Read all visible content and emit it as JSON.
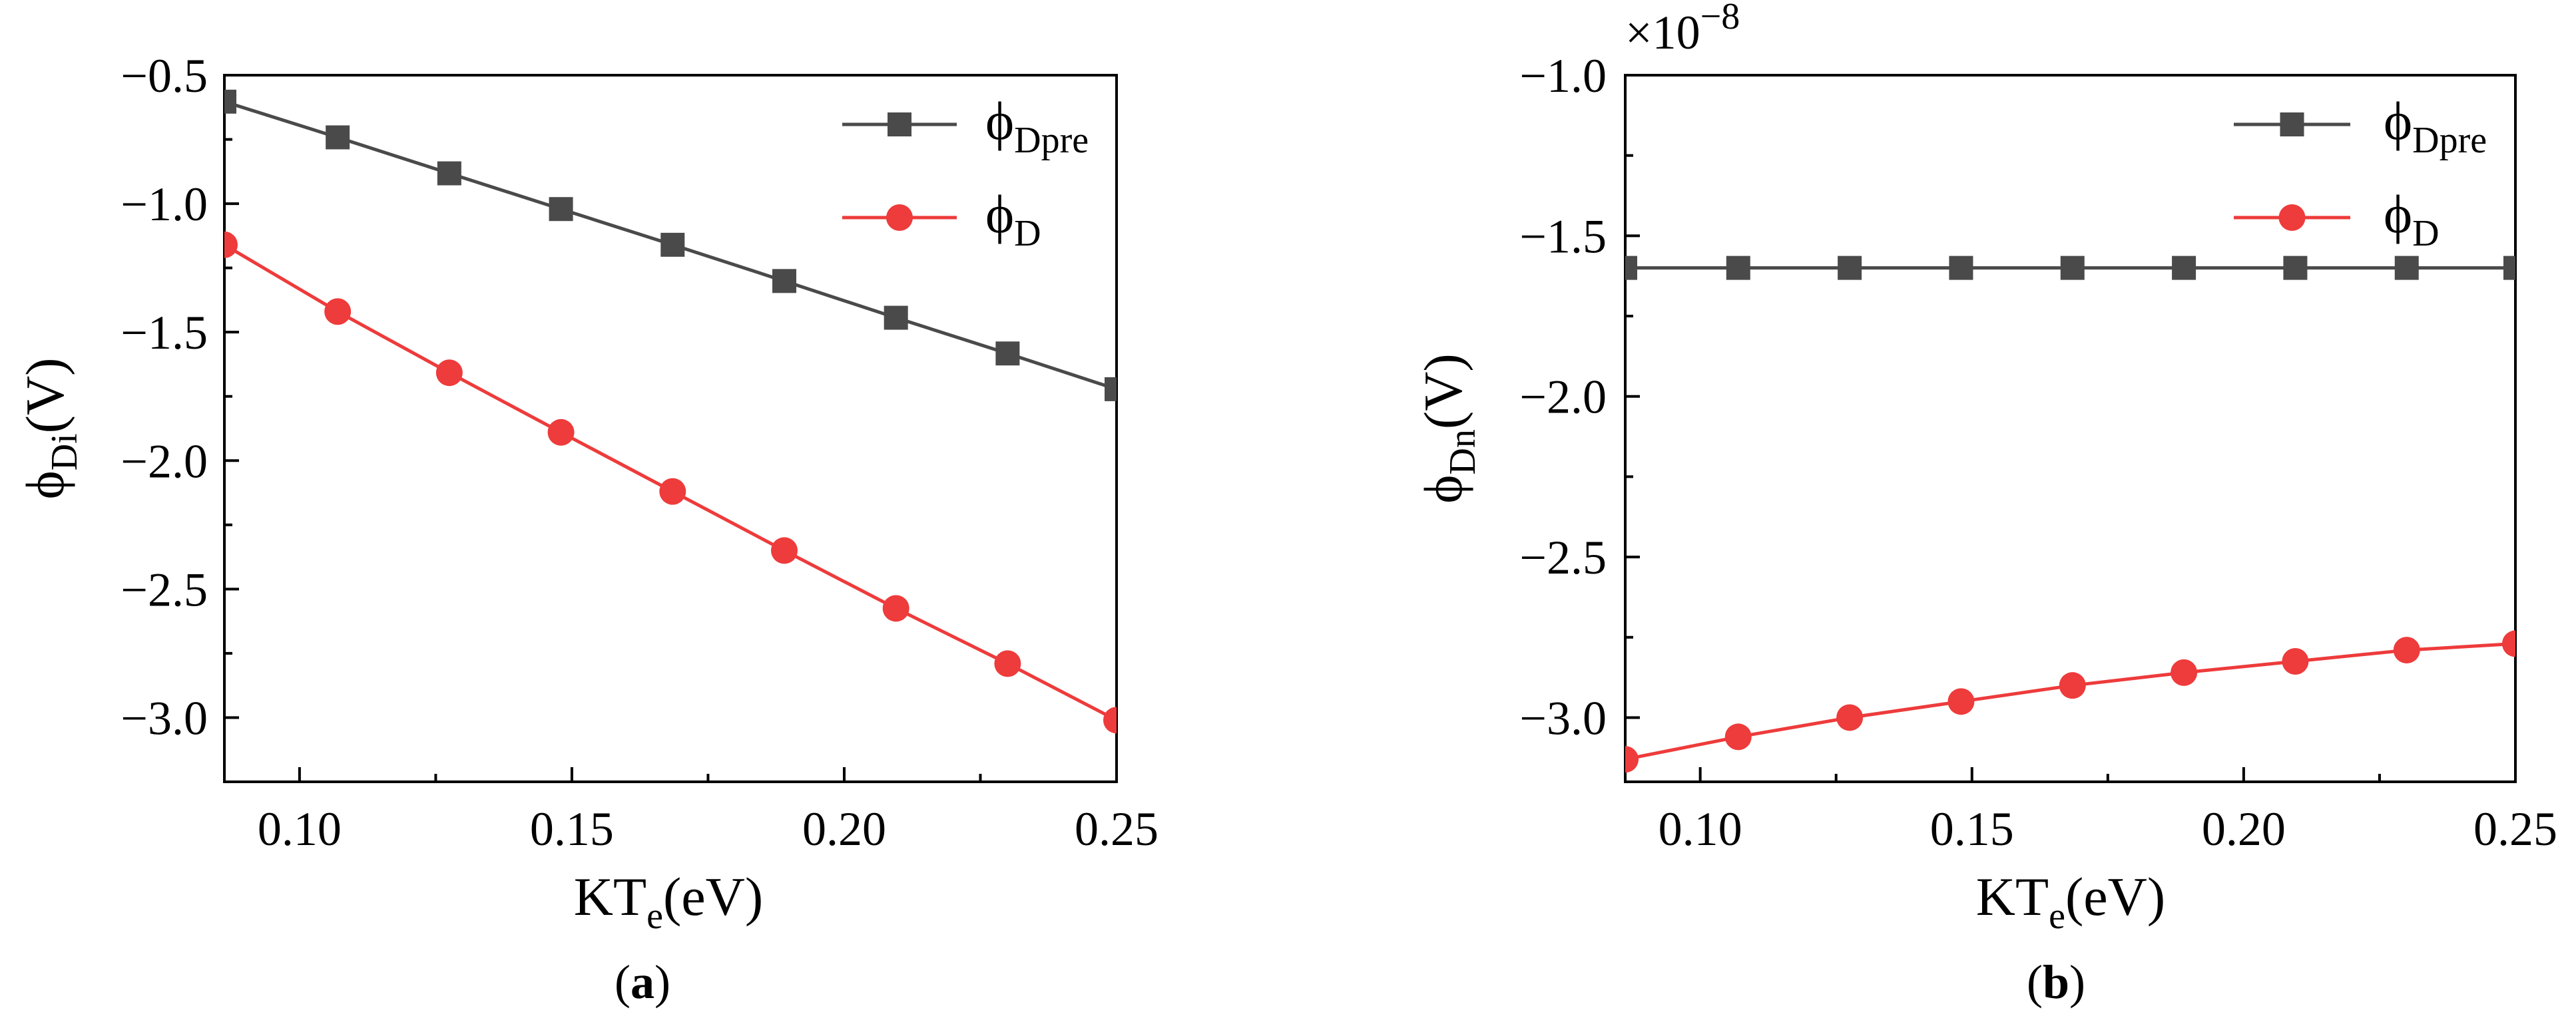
{
  "chart_data": [
    {
      "panel_label": "a",
      "type": "line",
      "xlabel": {
        "main": "KT",
        "sub": "e",
        "tail": "(eV)"
      },
      "ylabel": {
        "main": "ϕ",
        "sub": "Di",
        "tail": "(V)"
      },
      "xlim": [
        0.0862,
        0.25
      ],
      "ylim": [
        -3.25,
        -0.5
      ],
      "xticks": [
        0.1,
        0.15,
        0.2,
        0.25
      ],
      "xtick_labels": [
        "0.10",
        "0.15",
        "0.20",
        "0.25"
      ],
      "yticks": [
        -0.5,
        -1.0,
        -1.5,
        -2.0,
        -2.5,
        -3.0
      ],
      "ytick_labels": [
        "−0.5",
        "−1.0",
        "−1.5",
        "−2.0",
        "−2.5",
        "−3.0"
      ],
      "multiplier": "",
      "legend_position": "top-right",
      "x": [
        0.0862,
        0.107,
        0.1275,
        0.148,
        0.1685,
        0.189,
        0.2095,
        0.23,
        0.25
      ],
      "series": [
        {
          "name": "ϕ",
          "name_sub": "Dpre",
          "marker": "square",
          "color": "#4a4a4a",
          "values": [
            -0.603,
            -0.742,
            -0.882,
            -1.021,
            -1.16,
            -1.301,
            -1.444,
            -1.583,
            -1.722
          ]
        },
        {
          "name": "ϕ",
          "name_sub": "D",
          "marker": "circle",
          "color": "#ee3b3b",
          "values": [
            -1.16,
            -1.42,
            -1.658,
            -1.89,
            -2.12,
            -2.35,
            -2.575,
            -2.79,
            -3.01
          ]
        }
      ]
    },
    {
      "panel_label": "b",
      "type": "line",
      "xlabel": {
        "main": "KT",
        "sub": "e",
        "tail": "(eV)"
      },
      "ylabel": {
        "main": "ϕ",
        "sub": "Dn",
        "tail": "(V)"
      },
      "xlim": [
        0.0862,
        0.25
      ],
      "ylim": [
        -3.2,
        -1.0
      ],
      "xticks": [
        0.1,
        0.15,
        0.2,
        0.25
      ],
      "xtick_labels": [
        "0.10",
        "0.15",
        "0.20",
        "0.25"
      ],
      "yticks": [
        -1.0,
        -1.5,
        -2.0,
        -2.5,
        -3.0
      ],
      "ytick_labels": [
        "−1.0",
        "−1.5",
        "−2.0",
        "−2.5",
        "−3.0"
      ],
      "multiplier": "×10",
      "multiplier_exp": "−8",
      "legend_position": "top-right",
      "x": [
        0.0862,
        0.107,
        0.1275,
        0.148,
        0.1685,
        0.189,
        0.2095,
        0.23,
        0.25
      ],
      "series": [
        {
          "name": "ϕ",
          "name_sub": "Dpre",
          "marker": "square",
          "color": "#4a4a4a",
          "values": [
            -1.6,
            -1.6,
            -1.6,
            -1.6,
            -1.6,
            -1.6,
            -1.6,
            -1.6,
            -1.6
          ]
        },
        {
          "name": "ϕ",
          "name_sub": "D",
          "marker": "circle",
          "color": "#ee3b3b",
          "values": [
            -3.13,
            -3.06,
            -3.0,
            -2.95,
            -2.9,
            -2.86,
            -2.825,
            -2.79,
            -2.77
          ]
        }
      ]
    }
  ]
}
